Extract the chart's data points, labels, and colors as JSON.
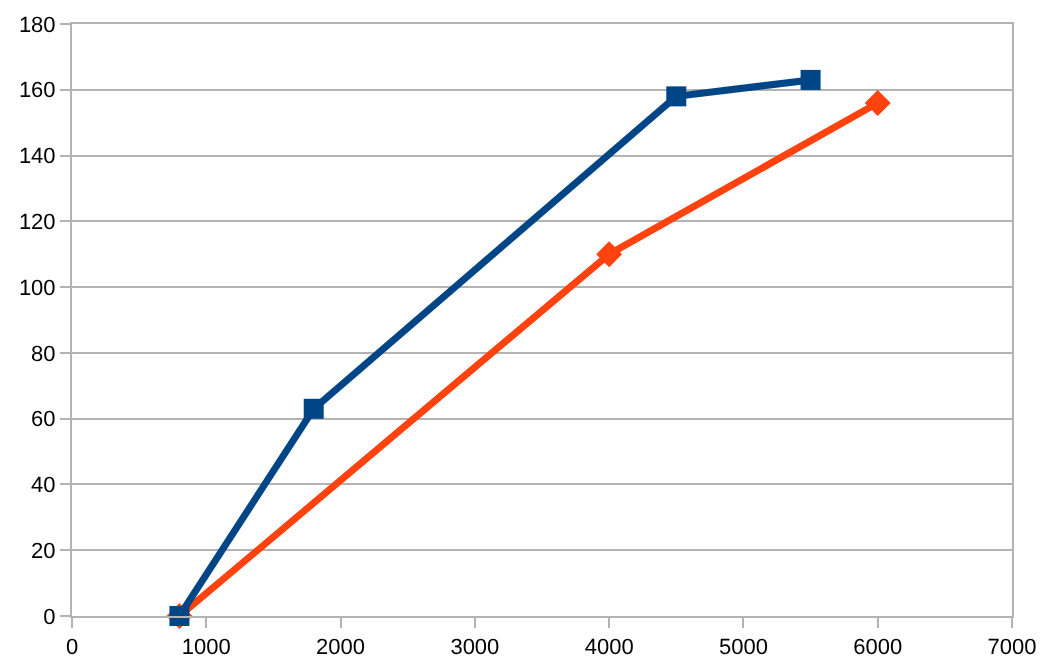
{
  "chart_data": {
    "type": "line",
    "series": [
      {
        "color": "#004586",
        "marker": "square",
        "x": [
          800,
          1800,
          4500,
          5500
        ],
        "values": [
          0,
          63,
          158,
          163
        ]
      },
      {
        "color": "#ff420e",
        "marker": "diamond",
        "x": [
          800,
          4000,
          6000
        ],
        "values": [
          0,
          110,
          156
        ]
      }
    ],
    "xlim": [
      0,
      7000
    ],
    "xticks": [
      0,
      1000,
      2000,
      3000,
      4000,
      5000,
      6000,
      7000
    ],
    "ylim": [
      0,
      180
    ],
    "yticks": [
      0,
      20,
      40,
      60,
      80,
      100,
      120,
      140,
      160,
      180
    ],
    "grid": "y",
    "line_style": "solid"
  }
}
